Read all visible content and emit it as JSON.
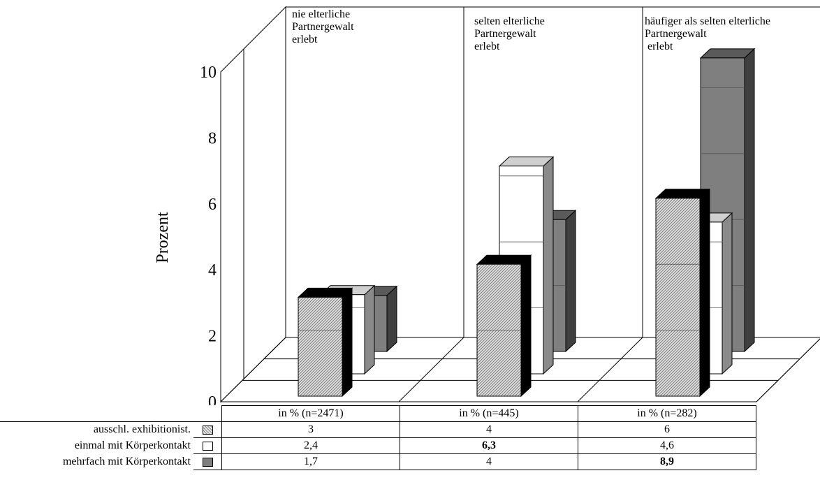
{
  "chart_data": {
    "type": "bar",
    "ylabel": "Prozent",
    "ylim": [
      0,
      10
    ],
    "yticks": [
      "0",
      "2",
      "4",
      "6",
      "8",
      "10"
    ],
    "categories": [
      "in % (n=2471)",
      "in % (n=445)",
      "in % (n=282)"
    ],
    "group_labels": [
      "nie elterliche\nPartnergewalt\nerlebt",
      "selten elterliche\nPartnergewalt\nerlebt",
      "häufiger als selten elterliche\nPartnergewalt\n erlebt"
    ],
    "series": [
      {
        "name": "ausschl. exhibitionist.",
        "values": [
          3,
          4,
          6
        ],
        "labels": [
          "3",
          "4",
          "6"
        ],
        "bold": [
          false,
          false,
          false
        ],
        "color": "#d9d9d9",
        "pattern": "hatched"
      },
      {
        "name": "einmal mit Körperkontakt",
        "values": [
          2.4,
          6.3,
          4.6
        ],
        "labels": [
          "2,4",
          "6,3",
          "4,6"
        ],
        "bold": [
          false,
          true,
          false
        ],
        "color": "#ffffff",
        "pattern": "solid"
      },
      {
        "name": "mehrfach mit Körperkontakt",
        "values": [
          1.7,
          4,
          8.9
        ],
        "labels": [
          "1,7",
          "4",
          "8,9"
        ],
        "bold": [
          false,
          false,
          true
        ],
        "color": "#7f7f7f",
        "pattern": "solid"
      }
    ],
    "grid": false,
    "legend": "data-table-below"
  }
}
